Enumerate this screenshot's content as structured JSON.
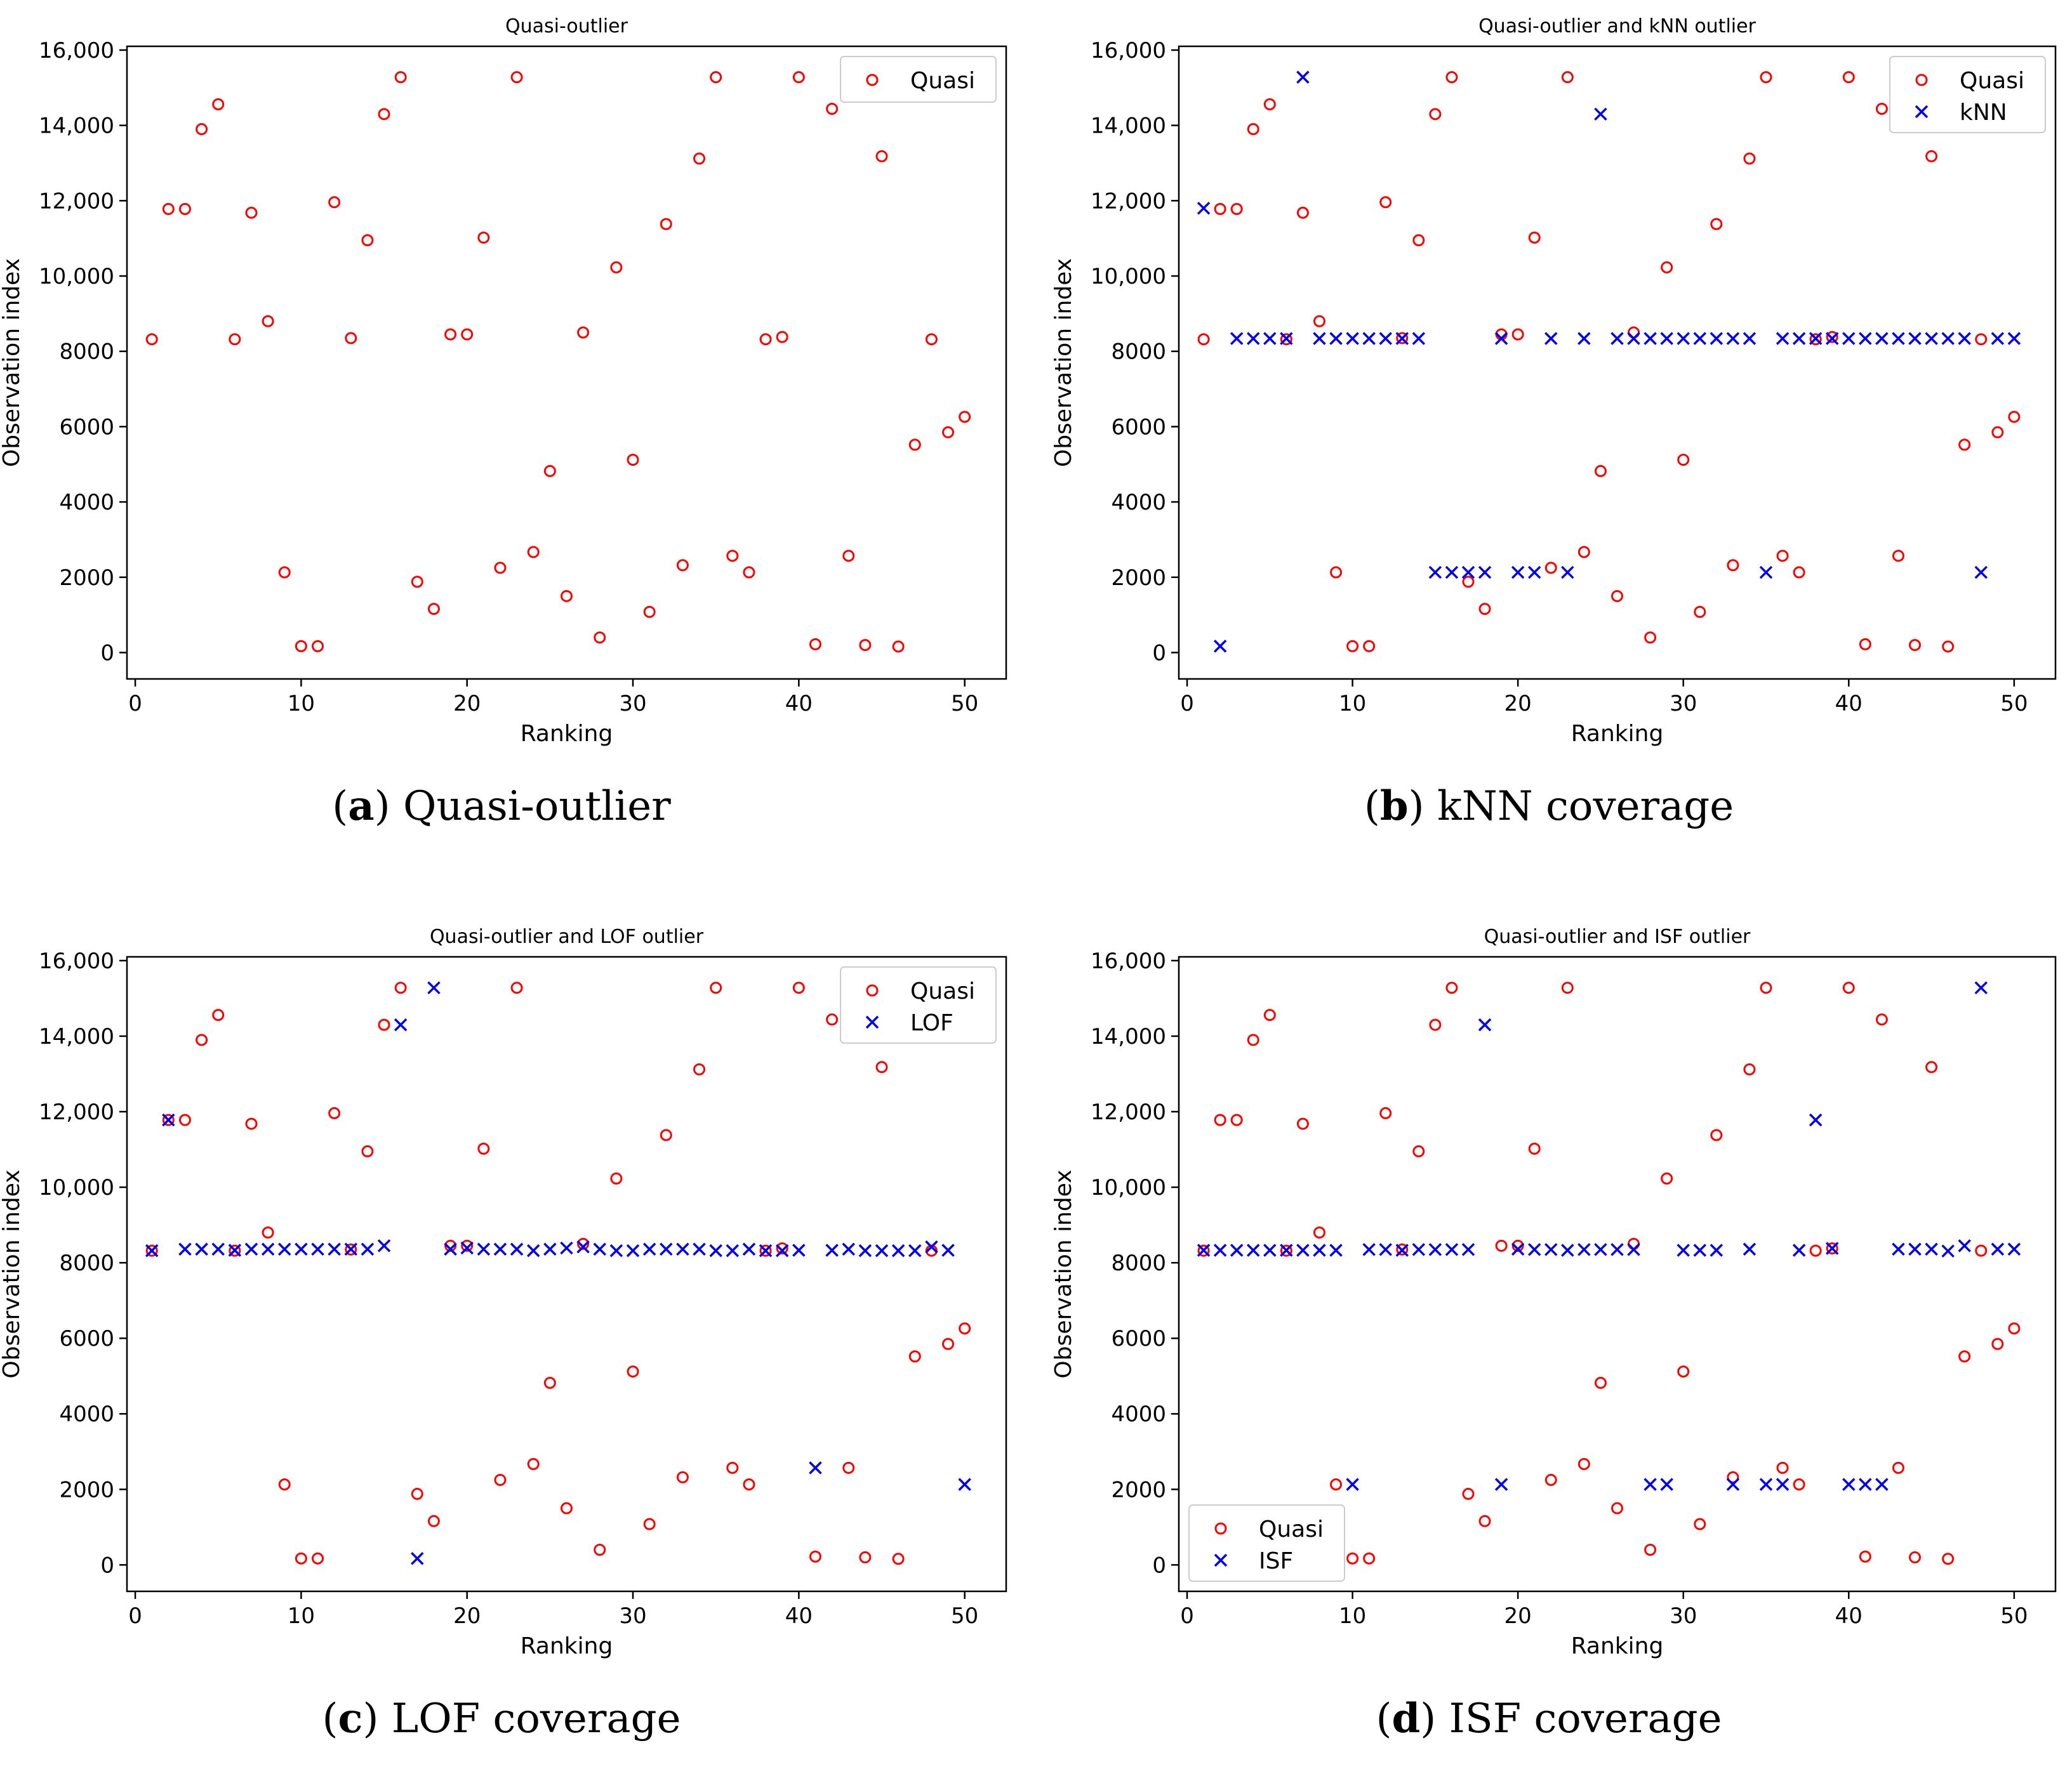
{
  "figure": {
    "panels": [
      {
        "letter": "a",
        "caption": "Quasi-outlier"
      },
      {
        "letter": "b",
        "caption": "kNN coverage"
      },
      {
        "letter": "c",
        "caption": "LOF coverage"
      },
      {
        "letter": "d",
        "caption": "ISF coverage"
      }
    ]
  },
  "colors": {
    "quasi": "#ff0000",
    "method": "#0000ee"
  },
  "chart_data": [
    {
      "type": "scatter",
      "title": "Quasi-outlier",
      "xlabel": "Ranking",
      "ylabel": "Observation index",
      "xlim": [
        -0.5,
        52.5
      ],
      "ylim": [
        -700,
        16100
      ],
      "xticks": [
        0,
        10,
        20,
        30,
        40,
        50
      ],
      "yticks": [
        0,
        2000,
        4000,
        6000,
        8000,
        10000,
        12000,
        14000,
        16000
      ],
      "ytick_labels": [
        "0",
        "2000",
        "4000",
        "6000",
        "8000",
        "10,000",
        "12,000",
        "14,000",
        "16,000"
      ],
      "legend_position": "top-right",
      "series": [
        {
          "name": "Quasi",
          "marker": "circle",
          "x": [
            1,
            2,
            3,
            4,
            5,
            6,
            7,
            8,
            9,
            10,
            11,
            12,
            13,
            14,
            15,
            16,
            17,
            18,
            19,
            20,
            21,
            22,
            23,
            24,
            25,
            26,
            27,
            28,
            29,
            30,
            31,
            32,
            33,
            34,
            35,
            36,
            37,
            38,
            39,
            40,
            41,
            42,
            43,
            44,
            45,
            46,
            47,
            48,
            49,
            50
          ],
          "y": [
            8320,
            11780,
            11780,
            13900,
            14560,
            8320,
            11680,
            8800,
            2130,
            170,
            170,
            11960,
            8350,
            10950,
            14300,
            15280,
            1880,
            1160,
            8450,
            8450,
            11020,
            2250,
            15280,
            2670,
            4820,
            1500,
            8500,
            400,
            10230,
            5120,
            1080,
            11380,
            2320,
            13120,
            15280,
            2570,
            2130,
            8320,
            8380,
            15280,
            220,
            14440,
            2570,
            200,
            13180,
            160,
            5520,
            8320,
            5850,
            6260
          ]
        }
      ]
    },
    {
      "type": "scatter",
      "title": "Quasi-outlier and kNN outlier",
      "xlabel": "Ranking",
      "ylabel": "Observation index",
      "xlim": [
        -0.5,
        52.5
      ],
      "ylim": [
        -700,
        16100
      ],
      "xticks": [
        0,
        10,
        20,
        30,
        40,
        50
      ],
      "yticks": [
        0,
        2000,
        4000,
        6000,
        8000,
        10000,
        12000,
        14000,
        16000
      ],
      "ytick_labels": [
        "0",
        "2000",
        "4000",
        "6000",
        "8000",
        "10,000",
        "12,000",
        "14,000",
        "16,000"
      ],
      "legend_position": "top-right",
      "series": [
        {
          "name": "Quasi",
          "marker": "circle",
          "x": [
            1,
            2,
            3,
            4,
            5,
            6,
            7,
            8,
            9,
            10,
            11,
            12,
            13,
            14,
            15,
            16,
            17,
            18,
            19,
            20,
            21,
            22,
            23,
            24,
            25,
            26,
            27,
            28,
            29,
            30,
            31,
            32,
            33,
            34,
            35,
            36,
            37,
            38,
            39,
            40,
            41,
            42,
            43,
            44,
            45,
            46,
            47,
            48,
            49,
            50
          ],
          "y": [
            8320,
            11780,
            11780,
            13900,
            14560,
            8320,
            11680,
            8800,
            2130,
            170,
            170,
            11960,
            8350,
            10950,
            14300,
            15280,
            1880,
            1160,
            8450,
            8450,
            11020,
            2250,
            15280,
            2670,
            4820,
            1500,
            8500,
            400,
            10230,
            5120,
            1080,
            11380,
            2320,
            13120,
            15280,
            2570,
            2130,
            8320,
            8380,
            15280,
            220,
            14440,
            2570,
            200,
            13180,
            160,
            5520,
            8320,
            5850,
            6260
          ]
        },
        {
          "name": "kNN",
          "marker": "x",
          "x": [
            1,
            2,
            3,
            4,
            5,
            6,
            7,
            8,
            9,
            10,
            11,
            12,
            13,
            14,
            15,
            16,
            17,
            18,
            19,
            20,
            21,
            22,
            23,
            24,
            25,
            26,
            27,
            28,
            29,
            30,
            31,
            32,
            33,
            34,
            35,
            36,
            37,
            38,
            39,
            40,
            41,
            42,
            43,
            44,
            45,
            46,
            47,
            48,
            49,
            50
          ],
          "y": [
            11800,
            170,
            8340,
            8340,
            8340,
            8340,
            15280,
            8340,
            8340,
            8340,
            8340,
            8340,
            8340,
            8340,
            2130,
            2130,
            2130,
            2130,
            8340,
            2130,
            2130,
            8340,
            2130,
            8340,
            14300,
            8340,
            8340,
            8340,
            8340,
            8340,
            8340,
            8340,
            8340,
            8340,
            2130,
            8340,
            8340,
            8340,
            8340,
            8340,
            8340,
            8340,
            8340,
            8340,
            8340,
            8340,
            8340,
            2130,
            8340,
            8340
          ]
        }
      ]
    },
    {
      "type": "scatter",
      "title": "Quasi-outlier and LOF outlier",
      "xlabel": "Ranking",
      "ylabel": "Observation index",
      "xlim": [
        -0.5,
        52.5
      ],
      "ylim": [
        -700,
        16100
      ],
      "xticks": [
        0,
        10,
        20,
        30,
        40,
        50
      ],
      "yticks": [
        0,
        2000,
        4000,
        6000,
        8000,
        10000,
        12000,
        14000,
        16000
      ],
      "ytick_labels": [
        "0",
        "2000",
        "4000",
        "6000",
        "8000",
        "10,000",
        "12,000",
        "14,000",
        "16,000"
      ],
      "legend_position": "top-right",
      "series": [
        {
          "name": "Quasi",
          "marker": "circle",
          "x": [
            1,
            2,
            3,
            4,
            5,
            6,
            7,
            8,
            9,
            10,
            11,
            12,
            13,
            14,
            15,
            16,
            17,
            18,
            19,
            20,
            21,
            22,
            23,
            24,
            25,
            26,
            27,
            28,
            29,
            30,
            31,
            32,
            33,
            34,
            35,
            36,
            37,
            38,
            39,
            40,
            41,
            42,
            43,
            44,
            45,
            46,
            47,
            48,
            49,
            50
          ],
          "y": [
            8320,
            11780,
            11780,
            13900,
            14560,
            8320,
            11680,
            8800,
            2130,
            170,
            170,
            11960,
            8350,
            10950,
            14300,
            15280,
            1880,
            1160,
            8450,
            8450,
            11020,
            2250,
            15280,
            2670,
            4820,
            1500,
            8500,
            400,
            10230,
            5120,
            1080,
            11380,
            2320,
            13120,
            15280,
            2570,
            2130,
            8320,
            8380,
            15280,
            220,
            14440,
            2570,
            200,
            13180,
            160,
            5520,
            8320,
            5850,
            6260
          ]
        },
        {
          "name": "LOF",
          "marker": "x",
          "x": [
            1,
            2,
            3,
            4,
            5,
            6,
            7,
            8,
            9,
            10,
            11,
            12,
            13,
            14,
            15,
            16,
            17,
            18,
            19,
            20,
            21,
            22,
            23,
            24,
            25,
            26,
            27,
            28,
            29,
            30,
            31,
            32,
            33,
            34,
            35,
            36,
            37,
            38,
            39,
            40,
            41,
            42,
            43,
            44,
            45,
            46,
            47,
            48,
            49,
            50
          ],
          "y": [
            8320,
            11780,
            8360,
            8360,
            8360,
            8330,
            8360,
            8360,
            8360,
            8360,
            8360,
            8360,
            8360,
            8360,
            8450,
            14300,
            170,
            15280,
            8360,
            8390,
            8360,
            8360,
            8360,
            8320,
            8360,
            8390,
            8420,
            8360,
            8320,
            8320,
            8360,
            8360,
            8360,
            8360,
            8320,
            8320,
            8360,
            8320,
            8320,
            8330,
            2570,
            8330,
            8360,
            8320,
            8320,
            8320,
            8320,
            8420,
            8330,
            2130
          ]
        }
      ]
    },
    {
      "type": "scatter",
      "title": "Quasi-outlier and ISF outlier",
      "xlabel": "Ranking",
      "ylabel": "Observation index",
      "xlim": [
        -0.5,
        52.5
      ],
      "ylim": [
        -700,
        16100
      ],
      "xticks": [
        0,
        10,
        20,
        30,
        40,
        50
      ],
      "yticks": [
        0,
        2000,
        4000,
        6000,
        8000,
        10000,
        12000,
        14000,
        16000
      ],
      "ytick_labels": [
        "0",
        "2000",
        "4000",
        "6000",
        "8000",
        "10,000",
        "12,000",
        "14,000",
        "16,000"
      ],
      "legend_position": "bottom-left",
      "series": [
        {
          "name": "Quasi",
          "marker": "circle",
          "x": [
            1,
            2,
            3,
            4,
            5,
            6,
            7,
            8,
            9,
            10,
            11,
            12,
            13,
            14,
            15,
            16,
            17,
            18,
            19,
            20,
            21,
            22,
            23,
            24,
            25,
            26,
            27,
            28,
            29,
            30,
            31,
            32,
            33,
            34,
            35,
            36,
            37,
            38,
            39,
            40,
            41,
            42,
            43,
            44,
            45,
            46,
            47,
            48,
            49,
            50
          ],
          "y": [
            8320,
            11780,
            11780,
            13900,
            14560,
            8320,
            11680,
            8800,
            2130,
            170,
            170,
            11960,
            8350,
            10950,
            14300,
            15280,
            1880,
            1160,
            8450,
            8450,
            11020,
            2250,
            15280,
            2670,
            4820,
            1500,
            8500,
            400,
            10230,
            5120,
            1080,
            11380,
            2320,
            13120,
            15280,
            2570,
            2130,
            8320,
            8380,
            15280,
            220,
            14440,
            2570,
            200,
            13180,
            160,
            5520,
            8320,
            5850,
            6260
          ]
        },
        {
          "name": "ISF",
          "marker": "x",
          "x": [
            1,
            2,
            3,
            4,
            5,
            6,
            7,
            8,
            9,
            10,
            11,
            12,
            13,
            14,
            15,
            16,
            17,
            18,
            19,
            20,
            21,
            22,
            23,
            24,
            25,
            26,
            27,
            28,
            29,
            30,
            31,
            32,
            33,
            34,
            35,
            36,
            37,
            38,
            39,
            40,
            41,
            42,
            43,
            44,
            45,
            46,
            47,
            48,
            49,
            50
          ],
          "y": [
            8330,
            8330,
            8330,
            8330,
            8330,
            8330,
            8330,
            8330,
            8330,
            2130,
            8350,
            8350,
            8330,
            8350,
            8350,
            8350,
            8350,
            14300,
            2130,
            8360,
            8350,
            8350,
            8330,
            8350,
            8350,
            8350,
            8350,
            2130,
            2130,
            8330,
            8330,
            8330,
            2130,
            8360,
            2130,
            2130,
            8330,
            11780,
            8380,
            2130,
            2130,
            2130,
            8360,
            8360,
            8360,
            8310,
            8450,
            15280,
            8360,
            8360
          ]
        }
      ]
    }
  ]
}
